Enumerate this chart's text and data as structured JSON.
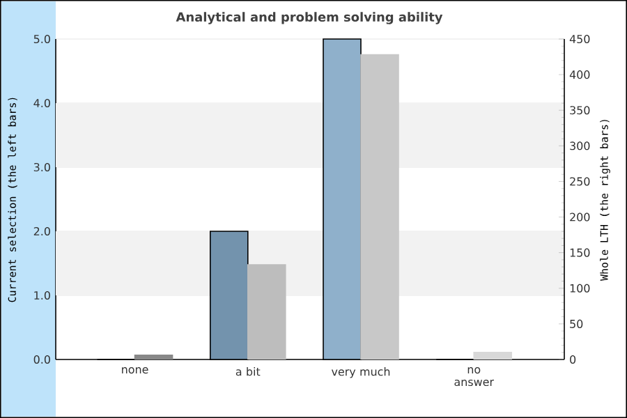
{
  "chart_data": {
    "type": "bar",
    "title": "Analytical and problem solving ability",
    "categories": [
      "none",
      "a bit",
      "very much",
      "no\nanswer"
    ],
    "ylabel": "Current selection (the left bars)",
    "y2label": "Whole LTH (the right bars)",
    "ylim": [
      0,
      5
    ],
    "yticks": [
      {
        "value": 0,
        "label": "0.0"
      },
      {
        "value": 1,
        "label": "1.0"
      },
      {
        "value": 2,
        "label": "2.0"
      },
      {
        "value": 3,
        "label": "3.0"
      },
      {
        "value": 4,
        "label": "4.0"
      },
      {
        "value": 5,
        "label": "5.0"
      }
    ],
    "y2lim": [
      0,
      450
    ],
    "y2ticks": [
      0,
      50,
      100,
      150,
      200,
      250,
      300,
      350,
      400,
      450
    ],
    "grid": "y",
    "bands": [
      {
        "axis": "y",
        "from": 1,
        "to": 2,
        "color": "#f2f2f2"
      },
      {
        "axis": "y",
        "from": 3,
        "to": 4,
        "color": "#f2f2f2"
      }
    ],
    "series": [
      {
        "colors": [
          "#7393ad",
          "#7393ad",
          "#8fb0cb",
          "#8fb0cb"
        ],
        "values": [
          0,
          2,
          5,
          0
        ]
      },
      {
        "axis": "y2",
        "colors": [
          "#888888",
          "#bdbdbd",
          "#c8c8c8",
          "#d8d8d8"
        ],
        "values": [
          6,
          133,
          428,
          10
        ]
      }
    ]
  }
}
